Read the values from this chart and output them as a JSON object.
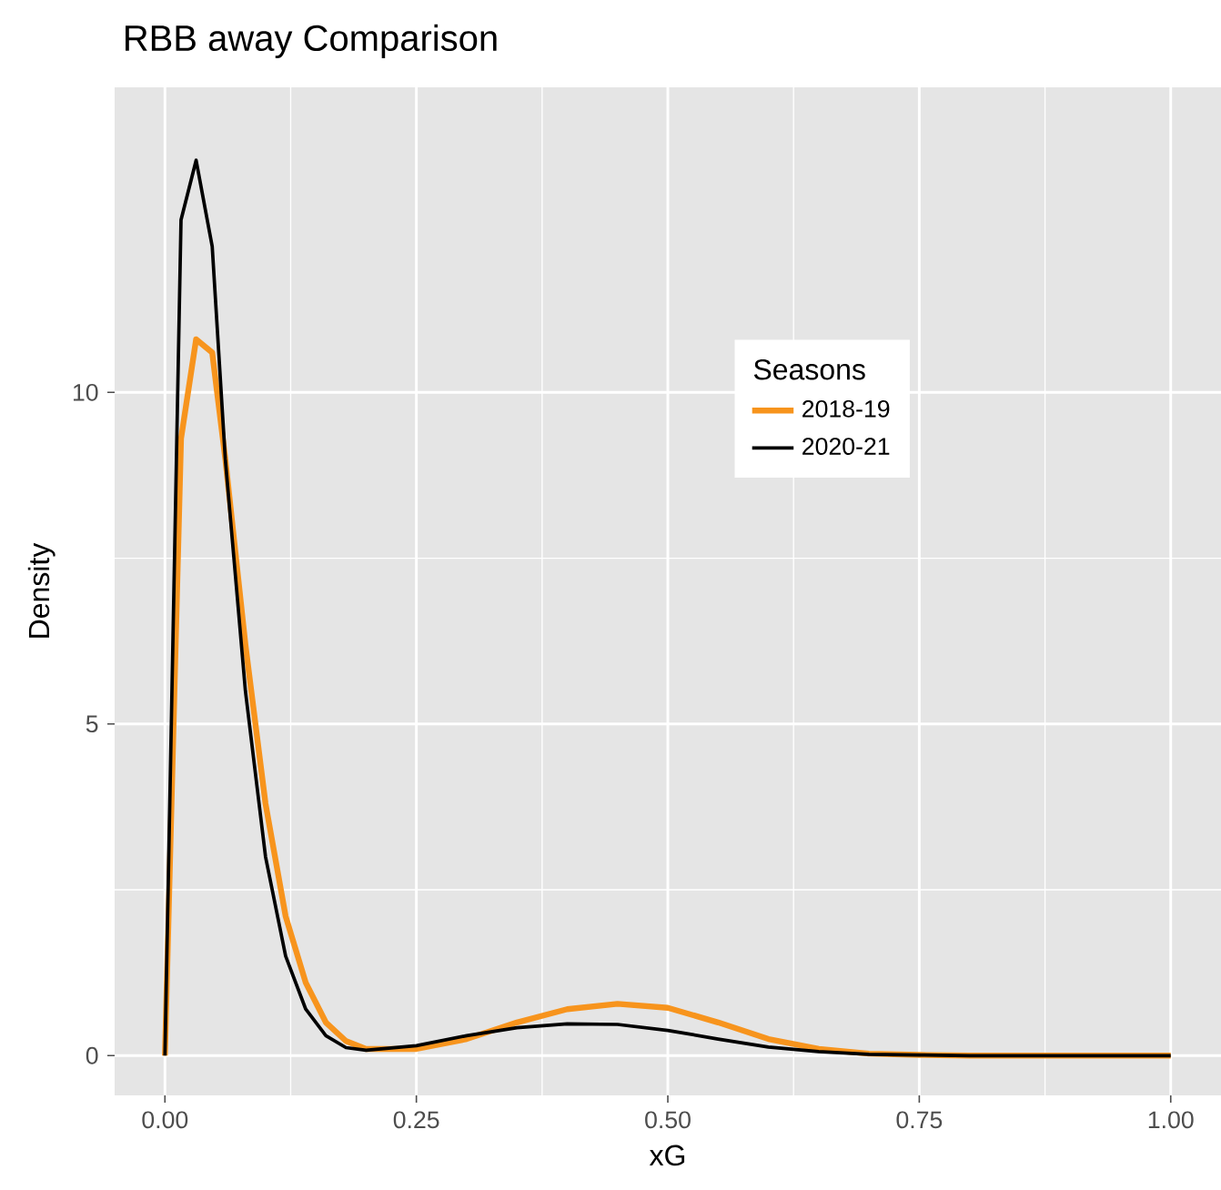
{
  "chart_data": {
    "type": "line",
    "title": "RBB away Comparison",
    "xlabel": "xG",
    "ylabel": "Density",
    "legend_title": "Seasons",
    "xlim": [
      -0.05,
      1.05
    ],
    "ylim": [
      -0.6,
      14.6
    ],
    "xticks": [
      {
        "value": 0,
        "label": "0.00"
      },
      {
        "value": 0.25,
        "label": "0.25"
      },
      {
        "value": 0.5,
        "label": "0.50"
      },
      {
        "value": 0.75,
        "label": "0.75"
      },
      {
        "value": 1,
        "label": "1.00"
      }
    ],
    "yticks": [
      0,
      5,
      10
    ],
    "grid": true,
    "legend": "right",
    "marker": "none",
    "line_style": "solid",
    "series": [
      {
        "name": "2018-19",
        "color": "#f7941d",
        "x": [
          0,
          0.016,
          0.031,
          0.047,
          0.06,
          0.08,
          0.1,
          0.12,
          0.14,
          0.16,
          0.18,
          0.2,
          0.25,
          0.3,
          0.35,
          0.4,
          0.45,
          0.5,
          0.55,
          0.6,
          0.65,
          0.7,
          0.75,
          0.8,
          1
        ],
        "values": [
          0,
          9.3,
          10.8,
          10.6,
          9,
          6.2,
          3.8,
          2.1,
          1.1,
          0.5,
          0.22,
          0.1,
          0.1,
          0.25,
          0.5,
          0.7,
          0.78,
          0.72,
          0.5,
          0.25,
          0.1,
          0.03,
          0.01,
          0,
          0
        ]
      },
      {
        "name": "2020-21",
        "color": "#000000",
        "x": [
          0,
          0.016,
          0.031,
          0.047,
          0.06,
          0.08,
          0.1,
          0.12,
          0.14,
          0.16,
          0.18,
          0.2,
          0.25,
          0.3,
          0.35,
          0.4,
          0.45,
          0.5,
          0.55,
          0.6,
          0.65,
          0.7,
          0.75,
          0.8,
          1
        ],
        "values": [
          0,
          12.6,
          13.5,
          12.2,
          9,
          5.5,
          3,
          1.5,
          0.7,
          0.3,
          0.12,
          0.08,
          0.15,
          0.3,
          0.42,
          0.48,
          0.47,
          0.38,
          0.25,
          0.13,
          0.06,
          0.02,
          0.01,
          0,
          0
        ]
      }
    ]
  }
}
